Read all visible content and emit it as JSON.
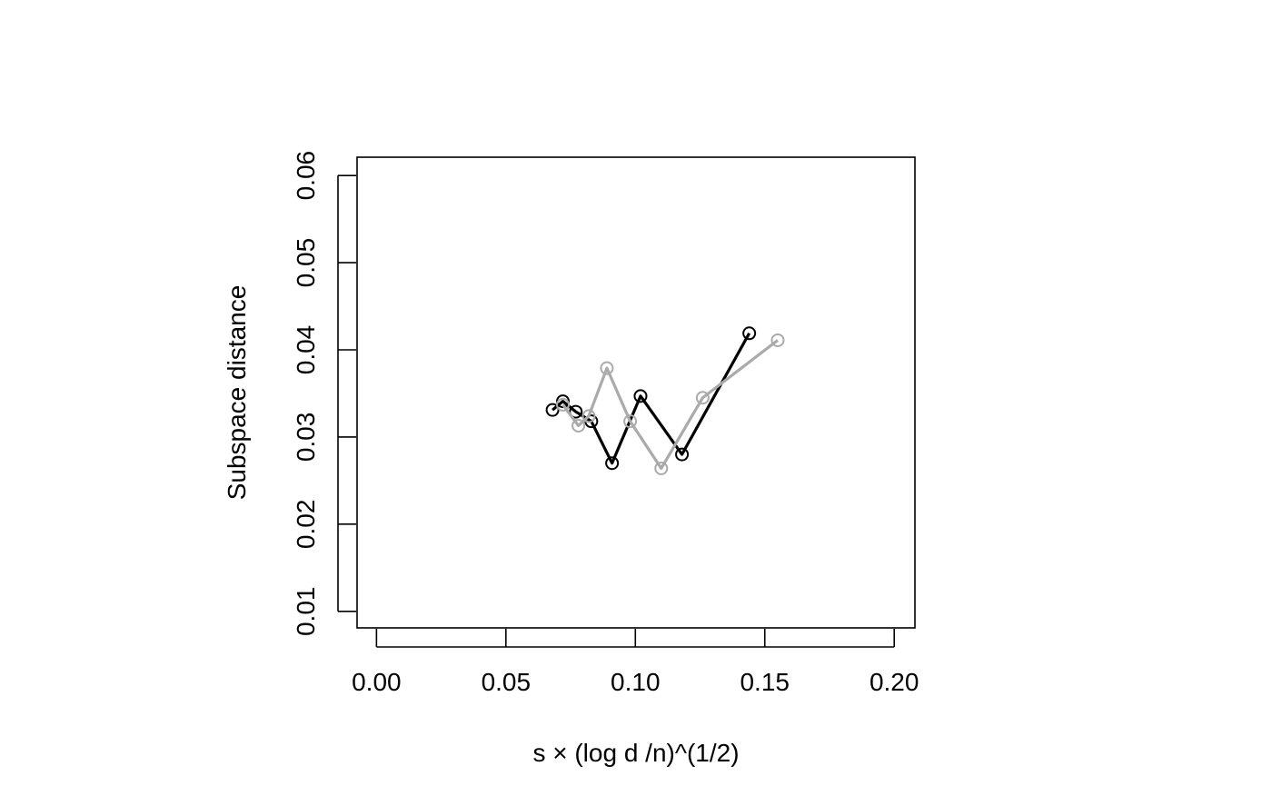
{
  "chart_data": {
    "type": "line",
    "title": "",
    "xlabel": "s × (log d /n)^(1/2)",
    "ylabel": "Subspace distance",
    "xlim": [
      -0.0075,
      0.208
    ],
    "ylim": [
      0.0081,
      0.0621
    ],
    "x_ticks": [
      0.0,
      0.05,
      0.1,
      0.15,
      0.2
    ],
    "x_tick_labels": [
      "0.00",
      "0.05",
      "0.10",
      "0.15",
      "0.20"
    ],
    "y_ticks": [
      0.01,
      0.02,
      0.03,
      0.04,
      0.05,
      0.06
    ],
    "y_tick_labels": [
      "0.01",
      "0.02",
      "0.03",
      "0.04",
      "0.05",
      "0.06"
    ],
    "grid": false,
    "legend": "none",
    "series": [
      {
        "color": "#000000",
        "x": [
          0.068,
          0.072,
          0.077,
          0.083,
          0.091,
          0.102,
          0.118,
          0.144
        ],
        "y": [
          0.0331,
          0.0341,
          0.0329,
          0.0318,
          0.027,
          0.0347,
          0.028,
          0.0419
        ]
      },
      {
        "color": "#aaaaaa",
        "x": [
          0.072,
          0.078,
          0.082,
          0.089,
          0.098,
          0.11,
          0.126,
          0.155
        ],
        "y": [
          0.0337,
          0.0313,
          0.0324,
          0.0379,
          0.0318,
          0.0264,
          0.0345,
          0.0411
        ]
      }
    ]
  }
}
